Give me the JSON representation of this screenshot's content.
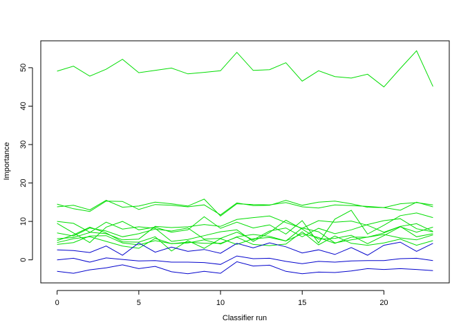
{
  "chart_data": {
    "type": "line",
    "xlabel": "Classifier run",
    "ylabel": "Importance",
    "xlim": [
      -1,
      24
    ],
    "ylim": [
      -6,
      57
    ],
    "x_ticks": [
      0,
      5,
      10,
      15,
      20
    ],
    "y_ticks": [
      0,
      10,
      20,
      30,
      40,
      50
    ],
    "grid": false,
    "x": [
      0,
      1,
      2,
      3,
      4,
      5,
      6,
      7,
      8,
      9,
      10,
      11,
      12,
      13,
      14,
      15,
      16,
      17,
      18,
      19,
      20,
      21,
      22,
      23
    ],
    "series": [
      {
        "color": "#00dd00",
        "values": [
          49.1,
          50.4,
          47.8,
          49.6,
          52.2,
          48.7,
          49.3,
          49.9,
          48.4,
          48.8,
          49.2,
          54.0,
          49.3,
          49.5,
          51.3,
          46.5,
          49.2,
          47.7,
          47.3,
          48.3,
          45.0,
          49.8,
          54.4,
          45.1
        ]
      },
      {
        "color": "#00dd00",
        "values": [
          14.5,
          13.3,
          12.6,
          15.3,
          15.2,
          13.1,
          14.4,
          14.2,
          13.8,
          14.3,
          11.7,
          14.8,
          14.1,
          14.2,
          15.5,
          14.2,
          15.0,
          15.3,
          14.6,
          13.7,
          13.6,
          14.6,
          14.9,
          14.3
        ]
      },
      {
        "color": "#00dd00",
        "values": [
          13.8,
          14.2,
          13.0,
          15.5,
          13.7,
          14.0,
          15.0,
          14.6,
          14.0,
          15.8,
          11.4,
          14.6,
          14.4,
          14.3,
          14.9,
          13.8,
          13.5,
          14.3,
          14.1,
          13.9,
          13.6,
          12.9,
          15.0,
          13.8
        ]
      },
      {
        "color": "#00dd00",
        "values": [
          10.0,
          9.5,
          7.2,
          6.8,
          5.2,
          5.4,
          8.7,
          8.4,
          8.6,
          9.2,
          8.7,
          10.5,
          11.0,
          11.4,
          9.7,
          8.2,
          10.2,
          9.8,
          10.1,
          9.0,
          7.2,
          8.7,
          9.4,
          7.4
        ]
      },
      {
        "color": "#00dd00",
        "values": [
          9.5,
          7.0,
          4.5,
          8.5,
          10.0,
          7.8,
          8.5,
          7.2,
          7.8,
          11.2,
          8.2,
          9.8,
          8.3,
          9.1,
          6.7,
          10.2,
          4.4,
          10.6,
          12.9,
          6.7,
          9.0,
          11.5,
          12.2,
          11.0
        ]
      },
      {
        "color": "#00dd00",
        "values": [
          7.0,
          6.2,
          8.3,
          7.5,
          6.0,
          6.8,
          8.0,
          7.5,
          8.3,
          5.4,
          5.6,
          7.2,
          5.2,
          7.5,
          8.3,
          6.0,
          8.2,
          6.8,
          7.8,
          9.2,
          10.2,
          10.7,
          8.1,
          7.3
        ]
      },
      {
        "color": "#00dd00",
        "values": [
          5.5,
          5.8,
          7.1,
          9.8,
          8.0,
          8.6,
          8.2,
          4.8,
          5.3,
          6.3,
          7.3,
          7.8,
          4.8,
          7.1,
          10.3,
          8.0,
          5.4,
          5.6,
          6.4,
          4.2,
          6.3,
          8.6,
          7.2,
          8.5
        ]
      },
      {
        "color": "#00dd00",
        "values": [
          5.0,
          6.5,
          8.5,
          7.0,
          4.7,
          4.6,
          6.0,
          2.3,
          5.0,
          3.0,
          5.5,
          4.0,
          5.5,
          5.8,
          4.9,
          8.3,
          7.3,
          4.4,
          5.2,
          5.9,
          7.0,
          8.7,
          6.0,
          6.8
        ]
      },
      {
        "color": "#00dd00",
        "values": [
          4.5,
          5.5,
          6.0,
          4.8,
          3.6,
          3.0,
          5.6,
          4.2,
          4.4,
          5.2,
          4.1,
          6.0,
          6.6,
          6.1,
          4.9,
          6.8,
          5.8,
          4.3,
          5.9,
          5.9,
          6.6,
          5.7,
          5.2,
          6.5
        ]
      },
      {
        "color": "#00dd00",
        "values": [
          4.0,
          4.5,
          6.2,
          6.3,
          4.4,
          3.9,
          5.0,
          4.2,
          4.6,
          4.3,
          4.3,
          5.9,
          4.0,
          3.7,
          4.1,
          7.3,
          3.9,
          6.2,
          4.3,
          3.8,
          4.4,
          5.4,
          3.8,
          5.0
        ]
      },
      {
        "color": "#0000cc",
        "values": [
          2.6,
          2.4,
          1.9,
          3.6,
          1.2,
          4.4,
          2.0,
          3.3,
          2.2,
          2.7,
          1.7,
          4.3,
          3.1,
          4.4,
          3.4,
          1.8,
          2.6,
          1.4,
          3.2,
          1.2,
          3.8,
          4.6,
          2.2,
          4.3
        ]
      },
      {
        "color": "#0000cc",
        "values": [
          0.0,
          0.4,
          -0.6,
          0.5,
          0.1,
          -0.3,
          -0.2,
          -0.6,
          -0.6,
          -0.7,
          -1.2,
          1.0,
          0.3,
          0.4,
          -0.4,
          -1.0,
          -0.4,
          -0.6,
          -0.3,
          -0.2,
          -0.2,
          0.3,
          0.4,
          -0.2
        ]
      },
      {
        "color": "#0000cc",
        "values": [
          -3.0,
          -3.5,
          -2.6,
          -2.1,
          -1.3,
          -2.3,
          -1.7,
          -3.1,
          -3.6,
          -3.0,
          -3.5,
          -0.5,
          -1.6,
          -1.4,
          -3.0,
          -3.6,
          -3.2,
          -3.3,
          -2.9,
          -2.3,
          -2.5,
          -2.3,
          -2.5,
          -2.8
        ]
      }
    ]
  }
}
